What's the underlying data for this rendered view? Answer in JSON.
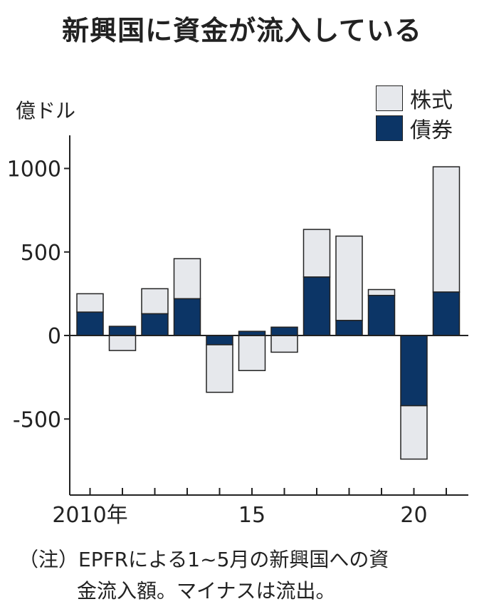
{
  "title": "新興国に資金が流入している",
  "colors": {
    "stock": "#e6e8ec",
    "bond": "#0c3566",
    "axis": "#222222",
    "outline": "#222222"
  },
  "chart_data": {
    "type": "bar",
    "stacked": true,
    "ylabel": "億ドル",
    "ylim": [
      -930,
      1080
    ],
    "yticks": [
      1000,
      500,
      0,
      -500
    ],
    "ytick_labels": [
      "1000",
      "500",
      "0",
      "-500"
    ],
    "categories": [
      "2010",
      "2011",
      "2012",
      "2013",
      "2014",
      "2015",
      "2016",
      "2017",
      "2018",
      "2019",
      "2020",
      "2021"
    ],
    "xtick_labels": [
      {
        "category": "2010",
        "label": "2010年"
      },
      {
        "category": "2015",
        "label": "15"
      },
      {
        "category": "2020",
        "label": "20"
      }
    ],
    "series": [
      {
        "name": "債券",
        "color": "#0c3566",
        "values": [
          140,
          55,
          130,
          220,
          -55,
          25,
          50,
          350,
          90,
          240,
          -420,
          260
        ]
      },
      {
        "name": "株式",
        "color": "#e6e8ec",
        "values": [
          110,
          -90,
          150,
          240,
          -285,
          -210,
          -100,
          285,
          505,
          35,
          -320,
          750
        ]
      }
    ],
    "legend": {
      "position": "top-right",
      "entries": [
        "株式",
        "債券"
      ]
    },
    "grid": false
  },
  "note": {
    "line1": "（注）EPFRによる1~5月の新興国への資",
    "line2": "金流入額。マイナスは流出。"
  }
}
